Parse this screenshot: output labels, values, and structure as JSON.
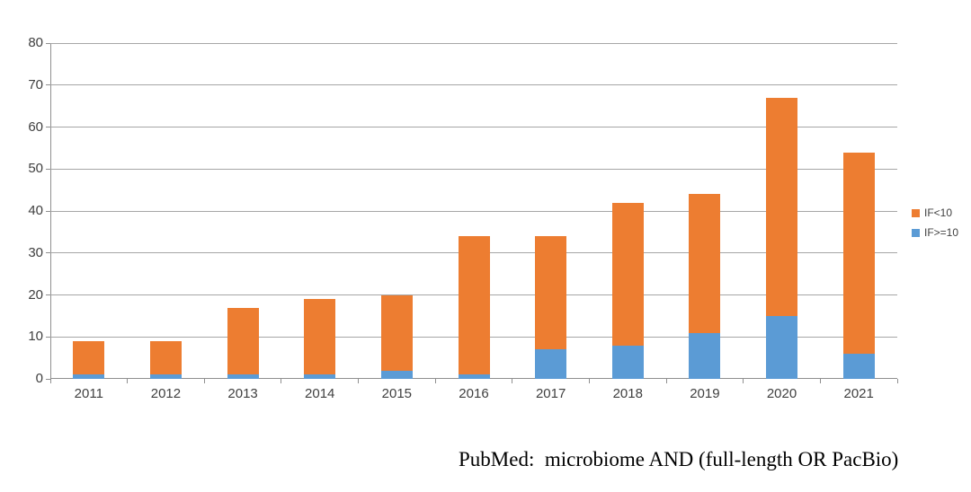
{
  "chart_data": {
    "type": "bar",
    "stacked": true,
    "title": "",
    "xlabel": "",
    "ylabel": "",
    "categories": [
      "2011",
      "2012",
      "2013",
      "2014",
      "2015",
      "2016",
      "2017",
      "2018",
      "2019",
      "2020",
      "2021"
    ],
    "series": [
      {
        "name": "IF>=10",
        "color": "#5B9BD5",
        "values": [
          1,
          1,
          1,
          1,
          2,
          1,
          7,
          8,
          11,
          15,
          6
        ]
      },
      {
        "name": "IF<10",
        "color": "#ED7D31",
        "values": [
          8,
          8,
          16,
          18,
          18,
          33,
          27,
          34,
          33,
          52,
          48
        ]
      }
    ],
    "stack_totals": [
      9,
      9,
      17,
      19,
      20,
      34,
      34,
      42,
      44,
      67,
      54
    ],
    "ylim": [
      0,
      80
    ],
    "yticks": [
      0,
      10,
      20,
      30,
      40,
      50,
      60,
      70,
      80
    ],
    "grid": true,
    "legend": {
      "position": "right",
      "entries": [
        {
          "label": "IF<10",
          "color": "#ED7D31"
        },
        {
          "label": "IF>=10",
          "color": "#5B9BD5"
        }
      ]
    }
  },
  "caption": {
    "text": "PubMed:  microbiome AND (full-length OR PacBio)"
  },
  "colors": {
    "background": "#FFFFFF",
    "gridline": "#A6A6A6",
    "axis": "#8F8F8F",
    "axis_label": "#404040",
    "bar_orange": "#ED7D31",
    "bar_blue": "#5B9BD5"
  }
}
